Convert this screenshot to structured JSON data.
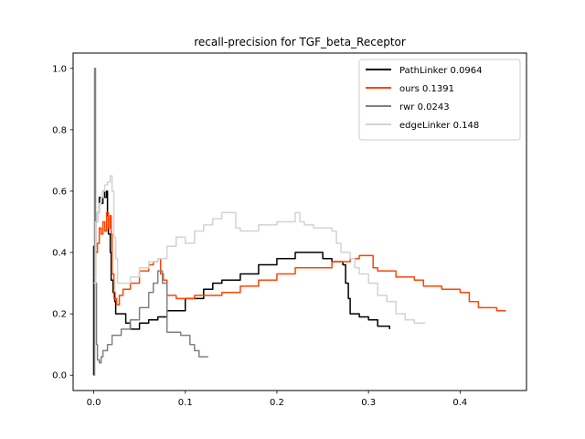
{
  "chart_data": {
    "type": "line",
    "title": "recall-precision for TGF_beta_Receptor",
    "xlabel": "",
    "ylabel": "",
    "xlim": [
      -0.0225,
      0.4725
    ],
    "ylim": [
      -0.05,
      1.05
    ],
    "xticks": [
      0.0,
      0.1,
      0.2,
      0.3,
      0.4
    ],
    "xtick_labels": [
      "0.0",
      "0.1",
      "0.2",
      "0.3",
      "0.4"
    ],
    "yticks": [
      0.0,
      0.2,
      0.4,
      0.6,
      0.8,
      1.0
    ],
    "ytick_labels": [
      "0.0",
      "0.2",
      "0.4",
      "0.6",
      "0.8",
      "1.0"
    ],
    "grid": false,
    "legend_position": "top-right",
    "series": [
      {
        "name": "PathLinker 0.0964",
        "color": "#000000",
        "points": [
          [
            0.0,
            0.0
          ],
          [
            0.0,
            0.42
          ],
          [
            0.002,
            0.5
          ],
          [
            0.004,
            0.53
          ],
          [
            0.006,
            0.58
          ],
          [
            0.008,
            0.56
          ],
          [
            0.01,
            0.6
          ],
          [
            0.012,
            0.58
          ],
          [
            0.014,
            0.6
          ],
          [
            0.015,
            0.52
          ],
          [
            0.016,
            0.46
          ],
          [
            0.018,
            0.4
          ],
          [
            0.019,
            0.31
          ],
          [
            0.021,
            0.27
          ],
          [
            0.023,
            0.24
          ],
          [
            0.024,
            0.2
          ],
          [
            0.026,
            0.2
          ],
          [
            0.03,
            0.2
          ],
          [
            0.035,
            0.17
          ],
          [
            0.04,
            0.15
          ],
          [
            0.05,
            0.17
          ],
          [
            0.06,
            0.18
          ],
          [
            0.07,
            0.19
          ],
          [
            0.08,
            0.21
          ],
          [
            0.1,
            0.25
          ],
          [
            0.12,
            0.28
          ],
          [
            0.13,
            0.3
          ],
          [
            0.14,
            0.31
          ],
          [
            0.16,
            0.33
          ],
          [
            0.18,
            0.36
          ],
          [
            0.2,
            0.38
          ],
          [
            0.22,
            0.4
          ],
          [
            0.23,
            0.4
          ],
          [
            0.25,
            0.38
          ],
          [
            0.26,
            0.37
          ],
          [
            0.272,
            0.36
          ],
          [
            0.275,
            0.3
          ],
          [
            0.278,
            0.25
          ],
          [
            0.28,
            0.2
          ],
          [
            0.29,
            0.19
          ],
          [
            0.3,
            0.18
          ],
          [
            0.31,
            0.16
          ],
          [
            0.323,
            0.15
          ]
        ]
      },
      {
        "name": "ours 0.1391",
        "color": "#ff4500",
        "points": [
          [
            0.0,
            0.32
          ],
          [
            0.002,
            0.4
          ],
          [
            0.004,
            0.43
          ],
          [
            0.006,
            0.48
          ],
          [
            0.008,
            0.46
          ],
          [
            0.01,
            0.5
          ],
          [
            0.012,
            0.47
          ],
          [
            0.014,
            0.53
          ],
          [
            0.016,
            0.48
          ],
          [
            0.018,
            0.52
          ],
          [
            0.019,
            0.46
          ],
          [
            0.02,
            0.33
          ],
          [
            0.022,
            0.25
          ],
          [
            0.025,
            0.23
          ],
          [
            0.028,
            0.26
          ],
          [
            0.032,
            0.28
          ],
          [
            0.04,
            0.3
          ],
          [
            0.05,
            0.34
          ],
          [
            0.06,
            0.36
          ],
          [
            0.065,
            0.37
          ],
          [
            0.07,
            0.38
          ],
          [
            0.073,
            0.33
          ],
          [
            0.076,
            0.31
          ],
          [
            0.08,
            0.26
          ],
          [
            0.09,
            0.25
          ],
          [
            0.1,
            0.25
          ],
          [
            0.11,
            0.26
          ],
          [
            0.13,
            0.26
          ],
          [
            0.14,
            0.27
          ],
          [
            0.16,
            0.29
          ],
          [
            0.18,
            0.31
          ],
          [
            0.2,
            0.33
          ],
          [
            0.22,
            0.35
          ],
          [
            0.24,
            0.35
          ],
          [
            0.26,
            0.37
          ],
          [
            0.28,
            0.38
          ],
          [
            0.29,
            0.39
          ],
          [
            0.3,
            0.39
          ],
          [
            0.305,
            0.35
          ],
          [
            0.31,
            0.34
          ],
          [
            0.33,
            0.32
          ],
          [
            0.35,
            0.31
          ],
          [
            0.36,
            0.29
          ],
          [
            0.38,
            0.28
          ],
          [
            0.4,
            0.27
          ],
          [
            0.41,
            0.24
          ],
          [
            0.42,
            0.22
          ],
          [
            0.43,
            0.22
          ],
          [
            0.44,
            0.21
          ],
          [
            0.45,
            0.21
          ]
        ]
      },
      {
        "name": "rwr 0.0243",
        "color": "#808080",
        "points": [
          [
            0.0,
            0.0
          ],
          [
            0.001,
            1.0
          ],
          [
            0.002,
            0.3
          ],
          [
            0.003,
            0.1
          ],
          [
            0.004,
            0.05
          ],
          [
            0.006,
            0.04
          ],
          [
            0.008,
            0.06
          ],
          [
            0.01,
            0.08
          ],
          [
            0.015,
            0.1
          ],
          [
            0.02,
            0.13
          ],
          [
            0.03,
            0.15
          ],
          [
            0.04,
            0.18
          ],
          [
            0.05,
            0.22
          ],
          [
            0.06,
            0.27
          ],
          [
            0.065,
            0.3
          ],
          [
            0.07,
            0.34
          ],
          [
            0.075,
            0.3
          ],
          [
            0.08,
            0.14
          ],
          [
            0.085,
            0.14
          ],
          [
            0.09,
            0.14
          ],
          [
            0.095,
            0.13
          ],
          [
            0.1,
            0.13
          ],
          [
            0.105,
            0.1
          ],
          [
            0.11,
            0.08
          ],
          [
            0.115,
            0.06
          ],
          [
            0.12,
            0.06
          ],
          [
            0.125,
            0.06
          ]
        ]
      },
      {
        "name": "edgeLinker 0.148",
        "color": "#d3d3d3",
        "points": [
          [
            0.0,
            0.3
          ],
          [
            0.002,
            0.5
          ],
          [
            0.004,
            0.53
          ],
          [
            0.006,
            0.56
          ],
          [
            0.008,
            0.58
          ],
          [
            0.01,
            0.6
          ],
          [
            0.012,
            0.62
          ],
          [
            0.015,
            0.63
          ],
          [
            0.018,
            0.65
          ],
          [
            0.02,
            0.6
          ],
          [
            0.022,
            0.45
          ],
          [
            0.024,
            0.38
          ],
          [
            0.026,
            0.3
          ],
          [
            0.03,
            0.3
          ],
          [
            0.04,
            0.32
          ],
          [
            0.05,
            0.35
          ],
          [
            0.06,
            0.37
          ],
          [
            0.07,
            0.38
          ],
          [
            0.08,
            0.42
          ],
          [
            0.09,
            0.45
          ],
          [
            0.1,
            0.43
          ],
          [
            0.11,
            0.47
          ],
          [
            0.12,
            0.49
          ],
          [
            0.13,
            0.51
          ],
          [
            0.14,
            0.53
          ],
          [
            0.15,
            0.53
          ],
          [
            0.155,
            0.48
          ],
          [
            0.16,
            0.47
          ],
          [
            0.18,
            0.49
          ],
          [
            0.2,
            0.5
          ],
          [
            0.22,
            0.53
          ],
          [
            0.225,
            0.5
          ],
          [
            0.23,
            0.49
          ],
          [
            0.24,
            0.48
          ],
          [
            0.25,
            0.48
          ],
          [
            0.26,
            0.47
          ],
          [
            0.265,
            0.43
          ],
          [
            0.27,
            0.4
          ],
          [
            0.28,
            0.38
          ],
          [
            0.285,
            0.35
          ],
          [
            0.29,
            0.33
          ],
          [
            0.3,
            0.3
          ],
          [
            0.31,
            0.26
          ],
          [
            0.32,
            0.24
          ],
          [
            0.33,
            0.2
          ],
          [
            0.34,
            0.18
          ],
          [
            0.35,
            0.17
          ],
          [
            0.362,
            0.17
          ]
        ]
      }
    ]
  }
}
